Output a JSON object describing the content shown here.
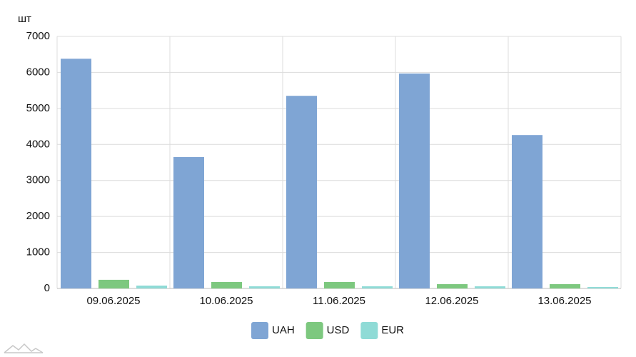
{
  "chart_data": {
    "type": "bar",
    "ylabel": "шт",
    "categories": [
      "09.06.2025",
      "10.06.2025",
      "11.06.2025",
      "12.06.2025",
      "13.06.2025"
    ],
    "series": [
      {
        "name": "UAH",
        "color": "#7fa5d4",
        "values": [
          6380,
          3650,
          5350,
          5970,
          4260
        ]
      },
      {
        "name": "USD",
        "color": "#7dc87f",
        "values": [
          240,
          180,
          180,
          120,
          120
        ]
      },
      {
        "name": "EUR",
        "color": "#8fdbd6",
        "values": [
          80,
          60,
          60,
          60,
          40
        ]
      }
    ],
    "ylim": [
      0,
      7000
    ],
    "yticks": [
      0,
      1000,
      2000,
      3000,
      4000,
      5000,
      6000,
      7000
    ],
    "grid": true,
    "legend": "bottom"
  }
}
